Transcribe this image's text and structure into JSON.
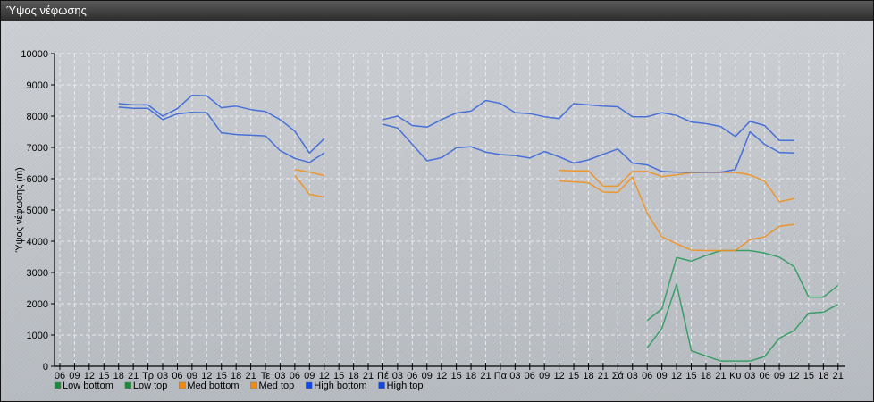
{
  "window": {
    "title": "Ύψος νέφωσης"
  },
  "colors": {
    "low": "#2e9a5c",
    "med": "#f0901e",
    "high": "#3a66d8",
    "low_legend": "#1a8a3a",
    "med_legend": "#f08a10",
    "high_legend": "#1048e0"
  },
  "chart_data": {
    "type": "line",
    "title": "",
    "ylabel": "Ύψος νέφωσης (m)",
    "xlabel": "",
    "ylim": [
      0,
      10000
    ],
    "yticks": [
      "0",
      "1000",
      "2000",
      "3000",
      "4000",
      "5000",
      "6000",
      "7000",
      "8000",
      "9000",
      "10000"
    ],
    "grid": true,
    "legend_position": "bottom-left",
    "categories": [
      "06",
      "09",
      "12",
      "15",
      "18",
      "21",
      "Τρ",
      "03",
      "06",
      "09",
      "12",
      "15",
      "18",
      "21",
      "Τε",
      "03",
      "06",
      "09",
      "12",
      "15",
      "18",
      "21",
      "Πέ",
      "03",
      "06",
      "09",
      "12",
      "15",
      "18",
      "21",
      "Πα",
      "03",
      "06",
      "09",
      "12",
      "15",
      "18",
      "21",
      "Σά",
      "03",
      "06",
      "09",
      "12",
      "15",
      "18",
      "21",
      "Κυ",
      "03",
      "06",
      "09",
      "12",
      "15",
      "18",
      "21"
    ],
    "series": [
      {
        "name": "Low bottom",
        "color_key": "low",
        "legend_key": "low_legend",
        "values": [
          null,
          null,
          null,
          null,
          null,
          null,
          null,
          null,
          null,
          null,
          null,
          null,
          null,
          null,
          null,
          null,
          null,
          null,
          null,
          null,
          null,
          null,
          null,
          null,
          null,
          null,
          null,
          null,
          null,
          null,
          null,
          null,
          null,
          null,
          null,
          null,
          null,
          null,
          null,
          null,
          590,
          1210,
          2620,
          500,
          330,
          170,
          170,
          170,
          310,
          900,
          1140,
          1700,
          1730,
          1980
        ]
      },
      {
        "name": "Low top",
        "color_key": "low",
        "legend_key": "low_legend",
        "values": [
          null,
          null,
          null,
          null,
          null,
          null,
          null,
          null,
          null,
          null,
          null,
          null,
          null,
          null,
          null,
          null,
          null,
          null,
          null,
          null,
          null,
          null,
          null,
          null,
          null,
          null,
          null,
          null,
          null,
          null,
          null,
          null,
          null,
          null,
          null,
          null,
          null,
          null,
          null,
          null,
          1470,
          1830,
          3480,
          3360,
          3540,
          3700,
          3700,
          3700,
          3620,
          3490,
          3190,
          2210,
          2210,
          2590
        ]
      },
      {
        "name": "Med bottom",
        "color_key": "med",
        "legend_key": "med_legend",
        "values": [
          null,
          null,
          null,
          null,
          null,
          null,
          null,
          null,
          null,
          null,
          null,
          null,
          null,
          null,
          null,
          null,
          6110,
          5500,
          5410,
          null,
          null,
          null,
          null,
          null,
          null,
          null,
          null,
          null,
          null,
          null,
          null,
          null,
          null,
          null,
          5930,
          5900,
          5870,
          5570,
          5560,
          6050,
          4900,
          4140,
          3920,
          3710,
          3700,
          3700,
          3700,
          4050,
          4140,
          4480,
          4540,
          null,
          null,
          null
        ]
      },
      {
        "name": "Med top",
        "color_key": "med",
        "legend_key": "med_legend",
        "values": [
          null,
          null,
          null,
          null,
          null,
          null,
          null,
          null,
          null,
          null,
          null,
          null,
          null,
          null,
          null,
          null,
          6290,
          6210,
          6100,
          null,
          null,
          null,
          null,
          null,
          null,
          null,
          null,
          null,
          null,
          null,
          null,
          null,
          null,
          null,
          6270,
          6250,
          6250,
          5760,
          5760,
          6230,
          6230,
          6070,
          6120,
          6190,
          6200,
          6200,
          6200,
          6120,
          5920,
          5260,
          5360,
          null,
          null,
          null
        ]
      },
      {
        "name": "High bottom",
        "color_key": "high",
        "legend_key": "high_legend",
        "values": [
          null,
          null,
          null,
          null,
          8290,
          8250,
          8250,
          7890,
          8070,
          8120,
          8110,
          7470,
          7410,
          7390,
          7370,
          6900,
          6650,
          6520,
          6820,
          null,
          null,
          null,
          7740,
          7620,
          7100,
          6570,
          6670,
          6990,
          7020,
          6850,
          6770,
          6740,
          6660,
          6870,
          6700,
          6500,
          6600,
          6780,
          6950,
          6500,
          6440,
          6230,
          6210,
          6210,
          6210,
          6210,
          6290,
          7500,
          7100,
          6840,
          6820,
          null,
          null,
          null
        ]
      },
      {
        "name": "High top",
        "color_key": "high",
        "legend_key": "high_legend",
        "values": [
          null,
          null,
          null,
          null,
          8400,
          8360,
          8360,
          8000,
          8240,
          8670,
          8650,
          8270,
          8320,
          8210,
          8150,
          7890,
          7520,
          6820,
          7280,
          null,
          null,
          null,
          7890,
          8000,
          7700,
          7650,
          7890,
          8100,
          8160,
          8500,
          8410,
          8110,
          8080,
          7980,
          7920,
          8400,
          8360,
          8320,
          8300,
          7980,
          7980,
          8110,
          8020,
          7810,
          7760,
          7670,
          7350,
          7830,
          7700,
          7220,
          7220,
          null,
          null,
          null
        ]
      }
    ]
  }
}
